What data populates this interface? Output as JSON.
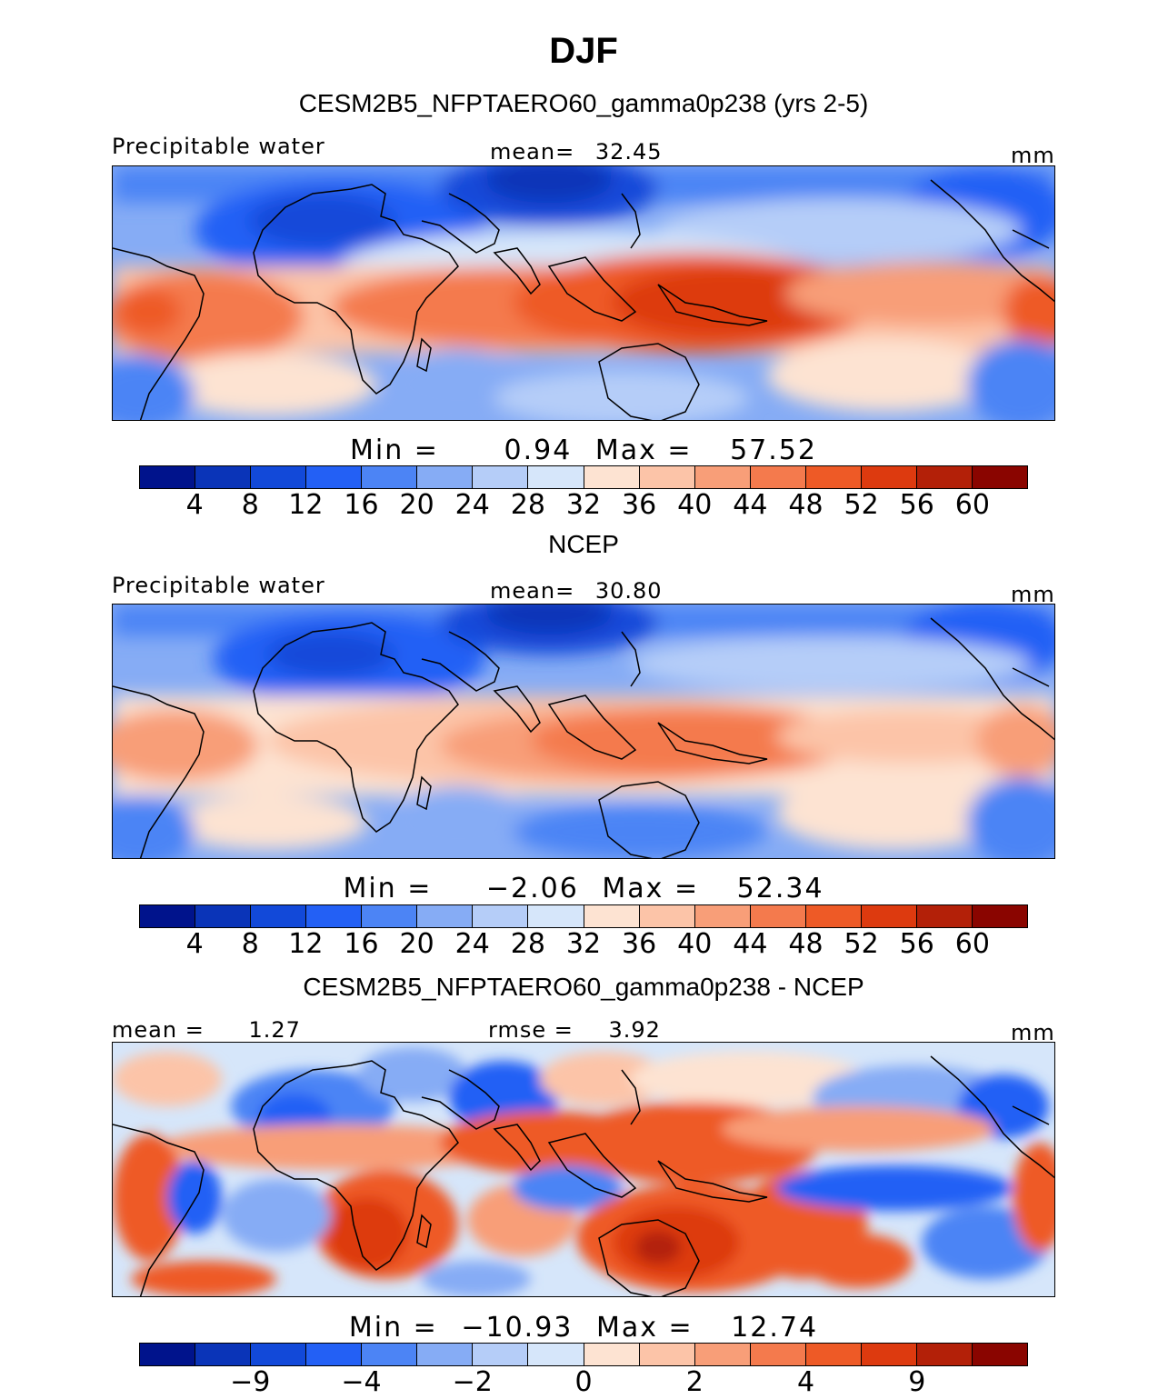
{
  "figure": {
    "title": "DJF"
  },
  "colors": {
    "abs_scale": [
      "#00138c",
      "#0a34b8",
      "#1249d9",
      "#2360f5",
      "#4c84f5",
      "#86acf5",
      "#b5cdf8",
      "#d6e6fa",
      "#fde3d2",
      "#fcc4a8",
      "#f89e78",
      "#f47a4d",
      "#ee5a26",
      "#dd3a0f",
      "#b32008",
      "#8a0500"
    ],
    "diff_scale": [
      "#00138c",
      "#0a34b8",
      "#1249d9",
      "#2360f5",
      "#4c84f5",
      "#86acf5",
      "#b5cdf8",
      "#d6e6fa",
      "#fde3d2",
      "#fcc4a8",
      "#f89e78",
      "#f47a4d",
      "#ee5a26",
      "#dd3a0f",
      "#b32008",
      "#8a0500"
    ]
  },
  "chart_data": [
    {
      "type": "heatmap",
      "title": "CESM2B5_NFPTAERO60_gamma0p238 (yrs 2-5)",
      "variable": "Precipitable water",
      "units": "mm",
      "mean_text": "mean=",
      "mean_value": "32.45",
      "min_text": "Min =",
      "min_value": "0.94",
      "max_text": "Max =",
      "max_value": "57.52",
      "levels": [
        "4",
        "8",
        "12",
        "16",
        "20",
        "24",
        "28",
        "32",
        "36",
        "40",
        "44",
        "48",
        "52",
        "56",
        "60"
      ]
    },
    {
      "type": "heatmap",
      "title": "NCEP",
      "variable": "Precipitable water",
      "units": "mm",
      "mean_text": "mean=",
      "mean_value": "30.80",
      "min_text": "Min =",
      "min_value": "−2.06",
      "max_text": "Max =",
      "max_value": "52.34",
      "levels": [
        "4",
        "8",
        "12",
        "16",
        "20",
        "24",
        "28",
        "32",
        "36",
        "40",
        "44",
        "48",
        "52",
        "56",
        "60"
      ]
    },
    {
      "type": "heatmap",
      "title": "CESM2B5_NFPTAERO60_gamma0p238 - NCEP",
      "mean_text": "mean =",
      "mean_value": "1.27",
      "rmse_text": "rmse =",
      "rmse_value": "3.92",
      "units": "mm",
      "min_text": "Min =",
      "min_value": "−10.93",
      "max_text": "Max =",
      "max_value": "12.74",
      "levels": [
        "−9",
        "−4",
        "−2",
        "0",
        "2",
        "4",
        "9"
      ]
    }
  ]
}
